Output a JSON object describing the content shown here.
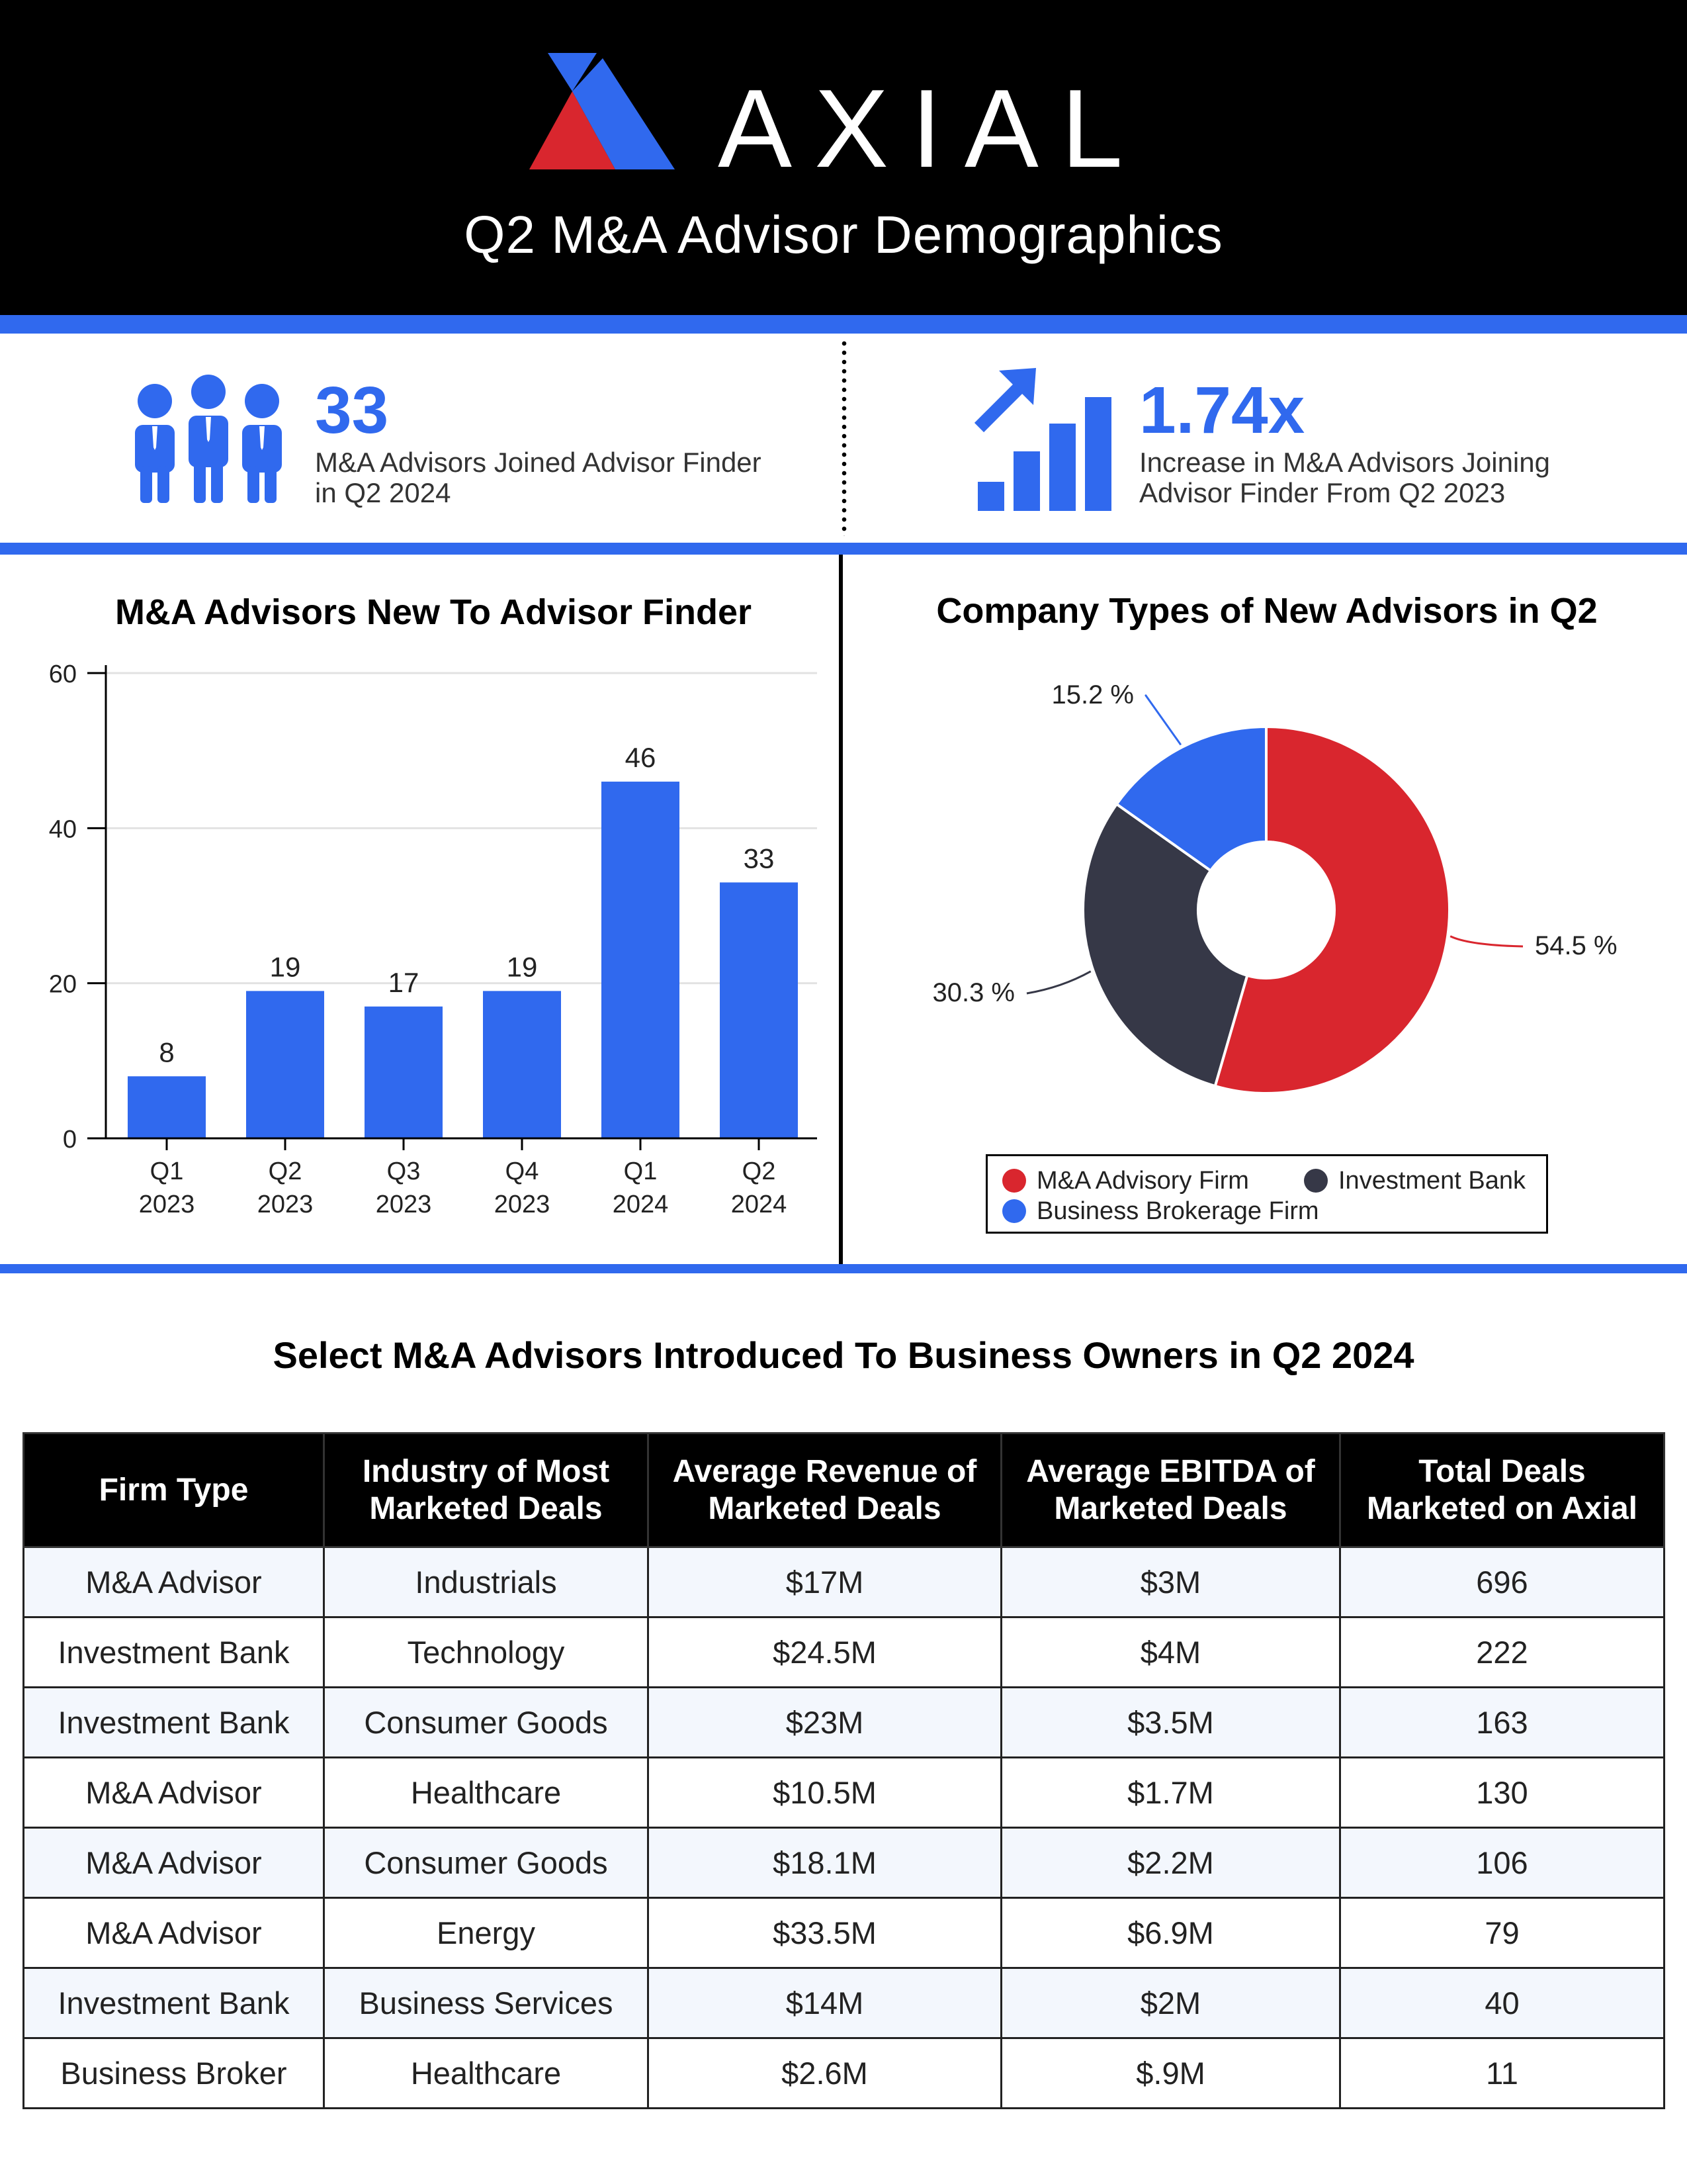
{
  "header": {
    "brand": "AXIAL",
    "subtitle": "Q2 M&A Advisor Demographics",
    "colors": {
      "background": "#000000",
      "red": "#D9262E",
      "blue": "#3069EE"
    }
  },
  "stats": [
    {
      "icon": "people-icon",
      "value": "33",
      "text": "M&A Advisors Joined Advisor Finder in Q2 2024"
    },
    {
      "icon": "growth-chart-icon",
      "value": "1.74x",
      "text": "Increase in M&A Advisors Joining Advisor Finder From Q2 2023"
    }
  ],
  "table": {
    "title": "Select M&A Advisors Introduced To Business Owners in Q2 2024",
    "columns": [
      "Firm Type",
      "Industry of Most Marketed Deals",
      "Average Revenue of Marketed Deals",
      "Average EBITDA of Marketed Deals",
      "Total Deals Marketed on Axial"
    ],
    "rows": [
      [
        "M&A Advisor",
        "Industrials",
        "$17M",
        "$3M",
        "696"
      ],
      [
        "Investment Bank",
        "Technology",
        "$24.5M",
        "$4M",
        "222"
      ],
      [
        "Investment Bank",
        "Consumer Goods",
        "$23M",
        "$3.5M",
        "163"
      ],
      [
        "M&A Advisor",
        "Healthcare",
        "$10.5M",
        "$1.7M",
        "130"
      ],
      [
        "M&A Advisor",
        "Consumer Goods",
        "$18.1M",
        "$2.2M",
        "106"
      ],
      [
        "M&A Advisor",
        "Energy",
        "$33.5M",
        "$6.9M",
        "79"
      ],
      [
        "Investment Bank",
        "Business Services",
        "$14M",
        "$2M",
        "40"
      ],
      [
        "Business Broker",
        "Healthcare",
        "$2.6M",
        "$.9M",
        "11"
      ]
    ]
  },
  "chart_data": [
    {
      "type": "bar",
      "title": "M&A Advisors New To Advisor Finder",
      "categories": [
        "Q1\n2023",
        "Q2\n2023",
        "Q3\n2023",
        "Q4\n2023",
        "Q1\n2024",
        "Q2\n2024"
      ],
      "category_lines": [
        [
          "Q1",
          "2023"
        ],
        [
          "Q2",
          "2023"
        ],
        [
          "Q3",
          "2023"
        ],
        [
          "Q4",
          "2023"
        ],
        [
          "Q1",
          "2024"
        ],
        [
          "Q2",
          "2024"
        ]
      ],
      "values": [
        8,
        19,
        17,
        19,
        46,
        33
      ],
      "data_labels": [
        "8",
        "19",
        "17",
        "19",
        "46",
        "33"
      ],
      "ylim": [
        0,
        60
      ],
      "yticks": [
        0,
        20,
        40,
        60
      ],
      "grid": true,
      "color": "#3069EE",
      "xlabel": "",
      "ylabel": ""
    },
    {
      "type": "pie",
      "donut": true,
      "title": "Company Types of New Advisors in Q2",
      "slices": [
        {
          "name": "M&A Advisory Firm",
          "value": 54.5,
          "label": "54.5 %",
          "color": "#D9262E"
        },
        {
          "name": "Investment Bank",
          "value": 30.3,
          "label": "30.3 %",
          "color": "#363847"
        },
        {
          "name": "Business Brokerage Firm",
          "value": 15.2,
          "label": "15.2 %",
          "color": "#3069EE"
        }
      ],
      "legend_position": "bottom"
    }
  ]
}
